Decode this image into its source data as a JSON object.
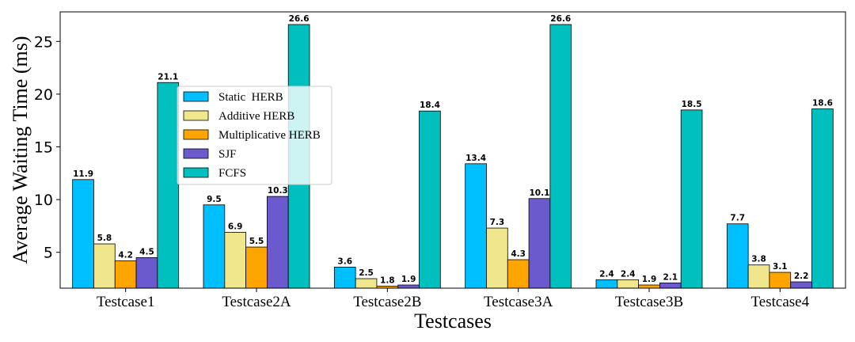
{
  "chart_data": {
    "type": "bar",
    "title": "",
    "xlabel": "Testcases",
    "ylabel": "Average Waiting Time (ms)",
    "categories": [
      "Testcase1",
      "Testcase2A",
      "Testcase2B",
      "Testcase3A",
      "Testcase3B",
      "Testcase4"
    ],
    "series": [
      {
        "name": "Static  HERB",
        "color": "#00BFFF",
        "values": [
          11.9,
          9.5,
          3.6,
          13.4,
          2.4,
          7.7
        ]
      },
      {
        "name": "Additive HERB",
        "color": "#F0E68C",
        "values": [
          5.8,
          6.9,
          2.5,
          7.3,
          2.4,
          3.8
        ]
      },
      {
        "name": "Multiplicative HERB",
        "color": "#FFA500",
        "values": [
          4.2,
          5.5,
          1.8,
          4.3,
          1.9,
          3.1
        ]
      },
      {
        "name": "SJF",
        "color": "#6A5ACD",
        "values": [
          4.5,
          10.3,
          1.9,
          10.1,
          2.1,
          2.2
        ]
      },
      {
        "name": "FCFS",
        "color": "#00BFBF",
        "values": [
          21.1,
          26.6,
          18.4,
          26.6,
          18.5,
          18.6
        ]
      }
    ],
    "data_labels": [
      [
        "11.9",
        "9.5",
        "3.6",
        "13.4",
        "2.4",
        "7.7"
      ],
      [
        "5.8",
        "6.9",
        "2.5",
        "7.3",
        "2.4",
        "3.8"
      ],
      [
        "4.2",
        "5.5",
        "1.8",
        "4.3",
        "1.9",
        "3.1"
      ],
      [
        "4.5",
        "10.3",
        "1.9",
        "10.1",
        "2.1",
        "2.2"
      ],
      [
        "21.1",
        "26.6",
        "18.4",
        "26.6",
        "18.5",
        "18.6"
      ]
    ],
    "ylim": [
      1.6,
      27.8
    ],
    "yticks": [
      5,
      10,
      15,
      20,
      25
    ],
    "ytick_labels": [
      "5",
      "10",
      "15",
      "20",
      "25"
    ],
    "grid": false,
    "legend_position": "upper-left-center"
  }
}
